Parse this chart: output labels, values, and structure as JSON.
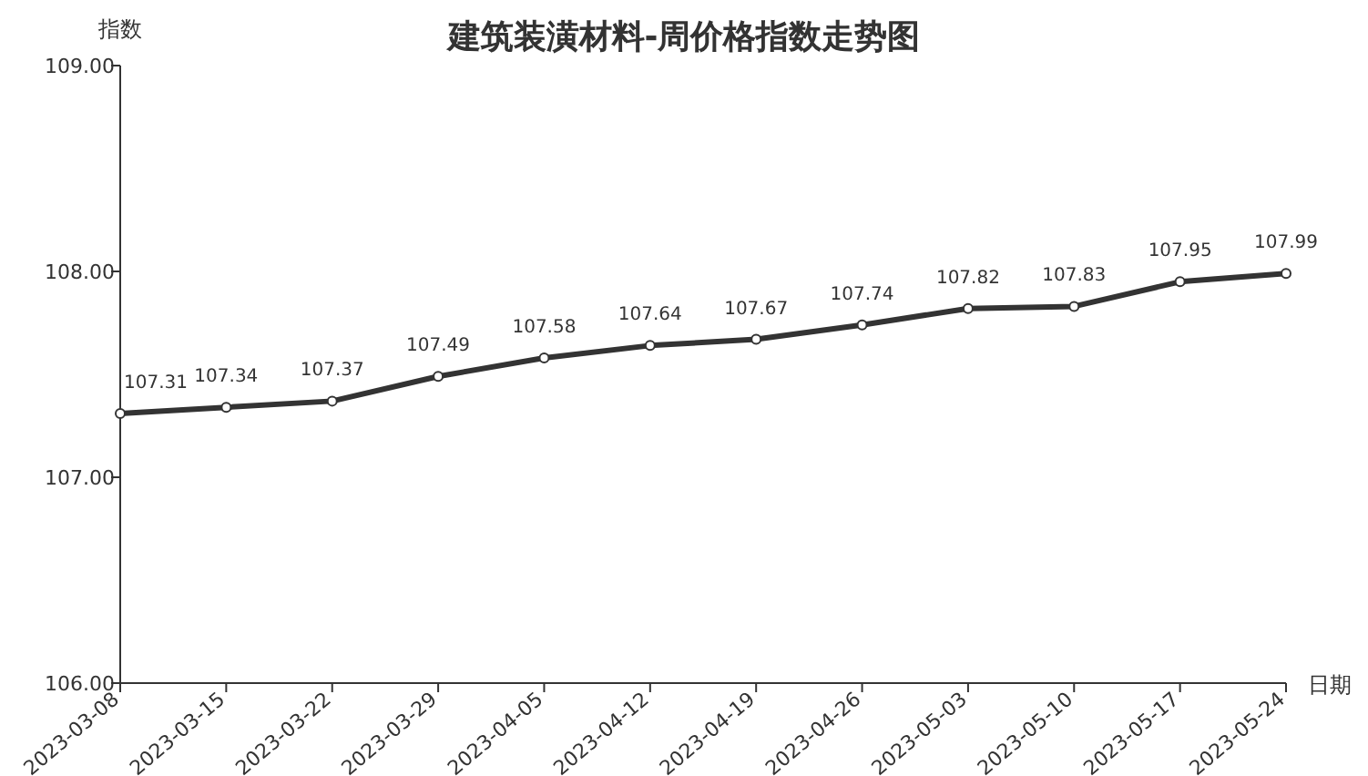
{
  "chart_data": {
    "type": "line",
    "title": "建筑装潢材料-周价格指数走势图",
    "xlabel": "日期",
    "ylabel": "指数",
    "categories": [
      "2023-03-08",
      "2023-03-15",
      "2023-03-22",
      "2023-03-29",
      "2023-04-05",
      "2023-04-12",
      "2023-04-19",
      "2023-04-26",
      "2023-05-03",
      "2023-05-10",
      "2023-05-17",
      "2023-05-24"
    ],
    "series": [
      {
        "color": "#333333",
        "values": [
          107.31,
          107.34,
          107.37,
          107.49,
          107.58,
          107.64,
          107.67,
          107.74,
          107.82,
          107.83,
          107.95,
          107.99
        ]
      }
    ],
    "ylim": [
      106,
      109
    ],
    "yticks": [
      {
        "value": 106,
        "label": "106.00"
      },
      {
        "value": 107,
        "label": "107.00"
      },
      {
        "value": 108,
        "label": "108.00"
      },
      {
        "value": 109,
        "label": "109.00"
      }
    ],
    "data_labels": true,
    "marker": "circle",
    "line_style": "solid"
  }
}
